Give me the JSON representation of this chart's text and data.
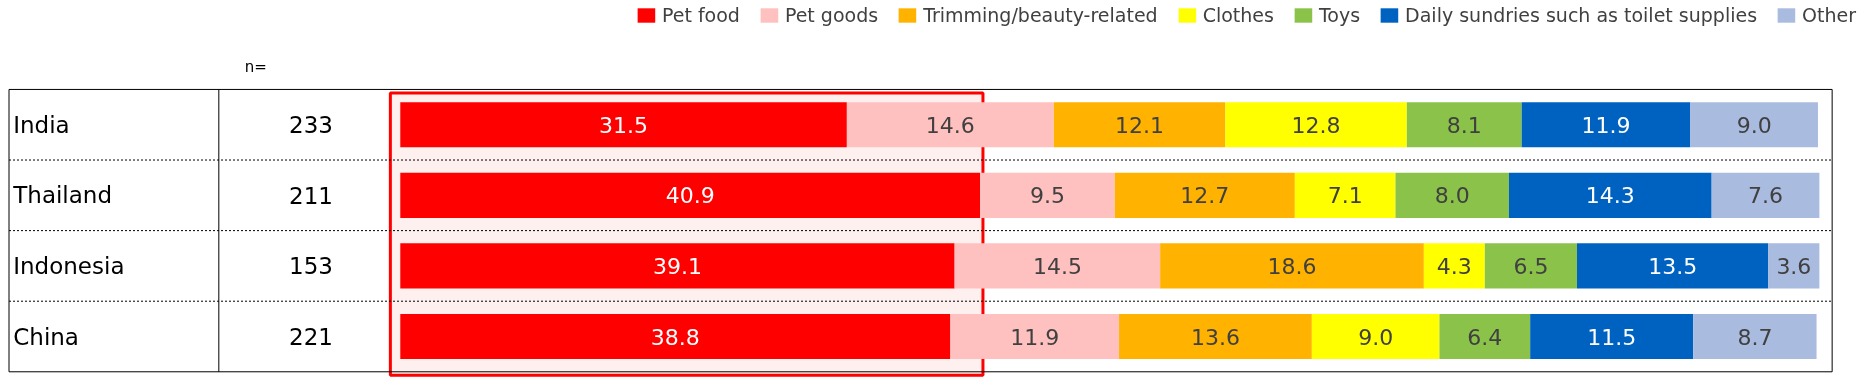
{
  "chart_data": {
    "type": "bar",
    "orientation": "horizontal",
    "stacked": true,
    "grid": false,
    "legend": "top right",
    "categories": [
      "India",
      "Thailand",
      "Indonesia",
      "China"
    ],
    "series": [
      {
        "name": "Pet food",
        "color": "#ff0000",
        "values": [
          31.5,
          40.9,
          39.1,
          38.8
        ],
        "value_labels": [
          "31.5",
          "40.9",
          "39.1",
          "38.8"
        ]
      },
      {
        "name": "Pet goods",
        "color": "#ffc0c0",
        "values": [
          14.6,
          9.5,
          14.5,
          11.9
        ],
        "value_labels": [
          "14.6",
          "9.5",
          "14.5",
          "11.9"
        ]
      },
      {
        "name": "Trimming/beauty-related",
        "color": "#ffb300",
        "values": [
          12.1,
          12.7,
          18.6,
          13.6
        ],
        "value_labels": [
          "12.1",
          "12.7",
          "18.6",
          "13.6"
        ]
      },
      {
        "name": "Clothes",
        "color": "#ffff00",
        "values": [
          12.8,
          7.1,
          4.3,
          9.0
        ],
        "value_labels": [
          "12.8",
          "7.1",
          "4.3",
          "9.0"
        ]
      },
      {
        "name": "Toys",
        "color": "#8bc34a",
        "values": [
          8.1,
          8.0,
          6.5,
          6.4
        ],
        "value_labels": [
          "8.1",
          "8.0",
          "6.5",
          "6.4"
        ]
      },
      {
        "name": "Daily sundries such as toilet supplies",
        "color": "#0062c0",
        "values": [
          11.9,
          14.3,
          13.5,
          11.5
        ],
        "value_labels": [
          "11.9",
          "14.3",
          "13.5",
          "11.5"
        ]
      },
      {
        "name": "Other",
        "color": "#aabbe0",
        "values": [
          9.0,
          7.6,
          3.6,
          8.7
        ],
        "value_labels": [
          "9.0",
          "7.6",
          "3.6",
          "8.7"
        ]
      }
    ],
    "annotations": [
      "n=",
      "233",
      "211",
      "153",
      "221"
    ],
    "bands": [
      {
        "axis": "x",
        "from": 0,
        "to": 40.9,
        "color": "#ff0000"
      }
    ]
  }
}
